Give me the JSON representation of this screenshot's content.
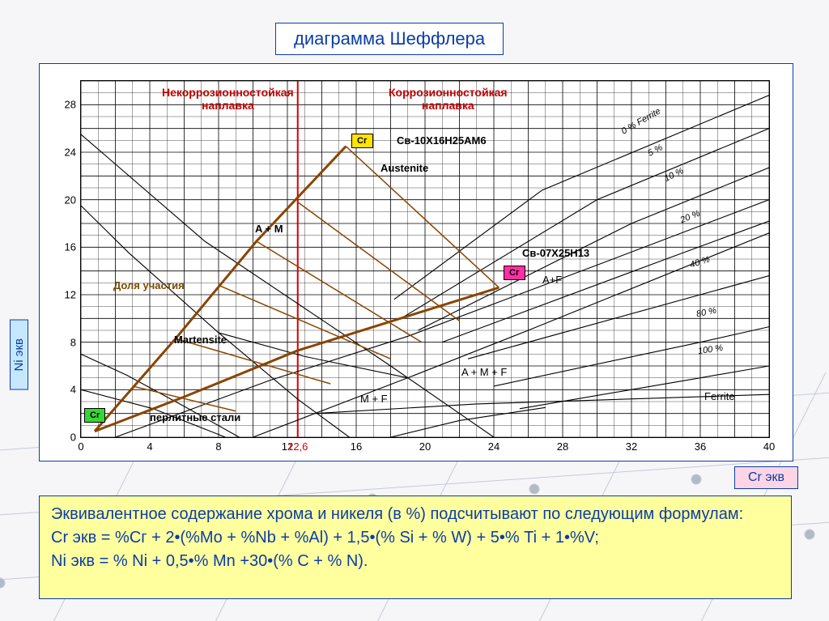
{
  "title": "диаграмма Шеффлера",
  "axis": {
    "y_label": "Ni экв",
    "x_label": "Cr экв",
    "x_min": 0,
    "x_max": 40,
    "y_min": 0,
    "y_max": 30,
    "x_ticks": [
      0,
      4,
      8,
      12,
      16,
      20,
      24,
      28,
      32,
      36,
      40
    ],
    "y_ticks": [
      0,
      4,
      8,
      12,
      16,
      20,
      24,
      28
    ],
    "x_marker": {
      "value": 12.6,
      "color": "#d40000"
    }
  },
  "colors": {
    "frame_border": "#0b3da8",
    "grid": "#000000",
    "brown_line": "#8a4500",
    "red_line": "#d40000",
    "formula_bg": "#ffff9e",
    "ni_bg": "#c6e8ff",
    "cr_bg": "#ffd5e5",
    "badge_green": "#37d637",
    "badge_yellow": "#ffe400",
    "badge_pink": "#ff2fa4"
  },
  "headers": {
    "left": "Некоррозионностойкая\nнаплавка",
    "right": "Коррозионностойкая\nнаплавка"
  },
  "regions": {
    "austenite": "Austenite",
    "a_m": "A + M",
    "martensite": "Martensite",
    "dolya": "Доля участия",
    "perlit": "перлитные стали",
    "m_f": "M + F",
    "a_m_f": "A + M + F",
    "a_f": "A+F",
    "ferrite": "Ferrite"
  },
  "wires": {
    "top": "Св-10Х16Н25АМ6",
    "mid": "Св-07Х25Н13"
  },
  "badges": {
    "green": "Cr",
    "yellow": "Сг",
    "pink": "Сг"
  },
  "ferrite_lines": {
    "pct0": "0 % Ferrite",
    "pct5": "5 %",
    "pct10": "10 %",
    "pct20": "20 %",
    "pct40": "40 %",
    "pct80": "80 %",
    "pct100": "100 %"
  },
  "boundary_lines": [
    {
      "pts": [
        [
          0,
          25.5
        ],
        [
          7.2,
          16.5
        ],
        [
          18,
          6
        ],
        [
          24,
          0
        ]
      ]
    },
    {
      "pts": [
        [
          0,
          19.5
        ],
        [
          2.8,
          15.5
        ],
        [
          8,
          8.8
        ],
        [
          12.6,
          3.2
        ],
        [
          15.6,
          0
        ]
      ]
    },
    {
      "pts": [
        [
          0,
          7
        ],
        [
          2.7,
          5.2
        ],
        [
          6,
          2.6
        ],
        [
          9.2,
          0
        ]
      ]
    },
    {
      "pts": [
        [
          0,
          4
        ],
        [
          4.2,
          2.4
        ],
        [
          8.4,
          0
        ]
      ]
    },
    {
      "pts": [
        [
          2,
          0
        ],
        [
          11,
          4.8
        ],
        [
          19,
          8.5
        ],
        [
          30,
          14.5
        ],
        [
          40,
          20
        ]
      ]
    },
    {
      "pts": [
        [
          10,
          0
        ],
        [
          13.6,
          2.0
        ],
        [
          19,
          5.0
        ],
        [
          26,
          9.0
        ],
        [
          40,
          17.2
        ]
      ]
    },
    {
      "pts": [
        [
          8,
          8.8
        ],
        [
          13,
          6.8
        ],
        [
          19,
          5.0
        ]
      ]
    },
    {
      "pts": [
        [
          18.2,
          11.6
        ],
        [
          26.8,
          20.8
        ],
        [
          40,
          28.8
        ]
      ]
    },
    {
      "pts": [
        [
          18.6,
          10.0
        ],
        [
          30,
          20
        ],
        [
          40,
          26
        ]
      ]
    },
    {
      "pts": [
        [
          19.6,
          9.0
        ],
        [
          32,
          18
        ],
        [
          40,
          22.7
        ]
      ]
    },
    {
      "pts": [
        [
          21,
          8.0
        ],
        [
          34,
          15
        ],
        [
          40,
          18.2
        ]
      ]
    },
    {
      "pts": [
        [
          22.5,
          6.6
        ],
        [
          36,
          12
        ],
        [
          40,
          13.6
        ]
      ]
    },
    {
      "pts": [
        [
          24,
          4.3
        ],
        [
          36,
          8
        ],
        [
          40,
          9.3
        ]
      ]
    },
    {
      "pts": [
        [
          25.5,
          2.4
        ],
        [
          36,
          5
        ],
        [
          40,
          6
        ]
      ]
    },
    {
      "pts": [
        [
          13.6,
          2.0
        ],
        [
          23,
          2.8
        ],
        [
          40,
          3.6
        ]
      ]
    },
    {
      "pts": [
        [
          18,
          0
        ],
        [
          22,
          1.4
        ],
        [
          27,
          2.5
        ]
      ]
    }
  ],
  "brown_lines": [
    {
      "pts": [
        [
          0.8,
          0.5
        ],
        [
          5.5,
          8.3
        ],
        [
          10.2,
          16.5
        ],
        [
          15.4,
          24.5
        ]
      ],
      "w": 3
    },
    {
      "pts": [
        [
          0.8,
          0.5
        ],
        [
          6,
          3.4
        ],
        [
          12.6,
          7.3
        ],
        [
          19,
          10.2
        ],
        [
          24.3,
          12.6
        ]
      ],
      "w": 3
    },
    {
      "pts": [
        [
          15.4,
          24.5
        ],
        [
          24.3,
          12.6
        ]
      ],
      "w": 1.5
    },
    {
      "pts": [
        [
          12.6,
          19.8
        ],
        [
          22,
          9.8
        ]
      ],
      "w": 1.5
    },
    {
      "pts": [
        [
          10.2,
          16.5
        ],
        [
          19.8,
          8.0
        ]
      ],
      "w": 1.5
    },
    {
      "pts": [
        [
          8.0,
          12.8
        ],
        [
          18.0,
          6.6
        ]
      ],
      "w": 1.5
    },
    {
      "pts": [
        [
          5.5,
          8.3
        ],
        [
          14.5,
          4.5
        ]
      ],
      "w": 1.5
    },
    {
      "pts": [
        [
          3.0,
          4.3
        ],
        [
          9.0,
          2.2
        ]
      ],
      "w": 1.5
    }
  ],
  "formula": {
    "line1": "Эквивалентное содержание хрома и никеля (в %) подсчитывают по следующим формулам:",
    "line2": "Cr экв = %Cг + 2•(%Mo + %Nb + %Al) + 1,5•(% Si + % W) + 5•% Ti + 1•%V;",
    "line3": "Ni экв = % Ni + 0,5•% Mn +30•(% C + % N)."
  }
}
